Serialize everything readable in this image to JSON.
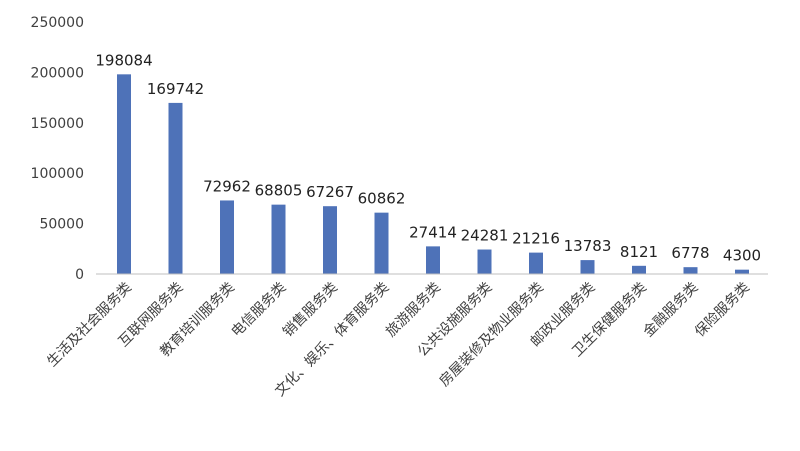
{
  "chart_data": {
    "type": "bar",
    "categories": [
      "生活及社会服务类",
      "互联网服务类",
      "教育培训服务类",
      "电信服务类",
      "销售服务类",
      "文化、娱乐、体育服务类",
      "旅游服务类",
      "公共设施服务类",
      "房屋装修及物业服务类",
      "邮政业服务类",
      "卫生保健服务类",
      "金融服务类",
      "保险服务类"
    ],
    "values": [
      198084,
      169742,
      72962,
      68805,
      67267,
      60862,
      27414,
      24281,
      21216,
      13783,
      8121,
      6778,
      4300
    ],
    "value_labels": [
      "198084",
      "169742",
      "72962",
      "68805",
      "67267",
      "60862",
      "27414",
      "24281",
      "21216",
      "13783",
      "8121",
      "6778",
      "4300"
    ],
    "y_ticks": [
      "0",
      "50000",
      "100000",
      "150000",
      "200000",
      "250000"
    ],
    "y_tick_values": [
      0,
      50000,
      100000,
      150000,
      200000,
      250000
    ],
    "ylim": [
      0,
      250000
    ],
    "grid": false,
    "legend": "none",
    "bar_color": "#4e72b8",
    "axis_color": "#bfbfbf"
  }
}
